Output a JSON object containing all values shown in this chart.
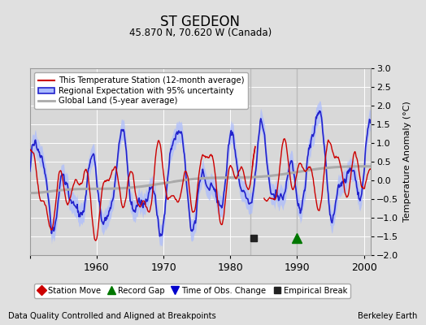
{
  "title": "ST GEDEON",
  "subtitle": "45.870 N, 70.620 W (Canada)",
  "ylabel": "Temperature Anomaly (°C)",
  "xlabel_note": "Data Quality Controlled and Aligned at Breakpoints",
  "credit": "Berkeley Earth",
  "xlim": [
    1950,
    2001
  ],
  "ylim": [
    -2,
    3
  ],
  "yticks": [
    -2,
    -1.5,
    -1,
    -0.5,
    0,
    0.5,
    1,
    1.5,
    2,
    2.5,
    3
  ],
  "xticks": [
    1950,
    1960,
    1970,
    1980,
    1990,
    2000
  ],
  "xticklabels": [
    "",
    "1960",
    "1970",
    "1980",
    "1990",
    "2000"
  ],
  "bg_color": "#e0e0e0",
  "plot_bg_color": "#d8d8d8",
  "grid_color": "#ffffff",
  "vline_color": "#bbbbbb",
  "vlines": [
    1983,
    1990
  ],
  "empirical_break_x": 1983.5,
  "empirical_break_y": -1.55,
  "record_gap_x": 1990.0,
  "record_gap_y": -1.55,
  "blue_line_color": "#2222cc",
  "blue_fill_color": "#aabbff",
  "red_line_color": "#cc0000",
  "gray_line_color": "#aaaaaa",
  "station_move_color": "#cc0000",
  "record_gap_color": "#007700",
  "obs_change_color": "#0000cc",
  "empirical_break_color": "#222222"
}
